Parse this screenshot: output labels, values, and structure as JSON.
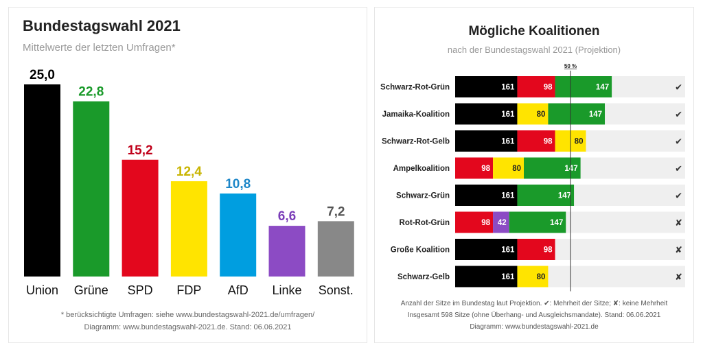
{
  "left_chart": {
    "title": "Bundestagswahl 2021",
    "subtitle": "Mittelwerte der letzten Umfragen*",
    "footnote_line1": "* berücksichtigte Umfragen: siehe www.bundestagswahl-2021.de/umfragen/",
    "footnote_line2": "Diagramm: www.bundestagswahl-2021.de. Stand: 06.06.2021",
    "chart_data": {
      "type": "bar",
      "categories": [
        "Union",
        "Grüne",
        "SPD",
        "FDP",
        "AfD",
        "Linke",
        "Sonst."
      ],
      "values": [
        25.0,
        22.8,
        15.2,
        12.4,
        10.8,
        6.6,
        7.2
      ],
      "value_labels": [
        "25,0",
        "22,8",
        "15,2",
        "12,4",
        "10,8",
        "6,6",
        "7,2"
      ],
      "colors": [
        "#000000",
        "#1a9a2a",
        "#e3071d",
        "#ffe400",
        "#009ee0",
        "#8c4bc4",
        "#888888"
      ],
      "label_colors": [
        "#000000",
        "#1a9a2a",
        "#c0001a",
        "#c8b400",
        "#1c86c8",
        "#7a3db8",
        "#555555"
      ],
      "ylim": [
        0,
        25
      ]
    }
  },
  "right_chart": {
    "title": "Mögliche Koalitionen",
    "subtitle": "nach der Bundestagswahl 2021 (Projektion)",
    "majority_label": "50 %",
    "footnote_line1": "Anzahl der Sitze im Bundestag laut Projektion. ✔: Mehrheit der Sitze; ✘: keine Mehrheit",
    "footnote_line2": "Insgesamt 598 Sitze (ohne Überhang- und Ausgleichsmandate). Stand: 06.06.2021",
    "footnote_line3": "Diagramm: www.bundestagswahl-2021.de",
    "chart_data": {
      "type": "bar",
      "orientation": "horizontal-stacked",
      "total_seats": 598,
      "majority_fraction": 0.5,
      "party_colors": {
        "Union": "#000000",
        "SPD": "#e3071d",
        "Grüne": "#1a9a2a",
        "FDP": "#ffe400",
        "Linke": "#8c4bc4"
      },
      "coalitions": [
        {
          "name": "Schwarz-Rot-Grün",
          "segments": [
            {
              "party": "Union",
              "seats": 161
            },
            {
              "party": "SPD",
              "seats": 98
            },
            {
              "party": "Grüne",
              "seats": 147
            }
          ],
          "majority": "✔"
        },
        {
          "name": "Jamaika-Koalition",
          "segments": [
            {
              "party": "Union",
              "seats": 161
            },
            {
              "party": "FDP",
              "seats": 80
            },
            {
              "party": "Grüne",
              "seats": 147
            }
          ],
          "majority": "✔"
        },
        {
          "name": "Schwarz-Rot-Gelb",
          "segments": [
            {
              "party": "Union",
              "seats": 161
            },
            {
              "party": "SPD",
              "seats": 98
            },
            {
              "party": "FDP",
              "seats": 80
            }
          ],
          "majority": "✔"
        },
        {
          "name": "Ampelkoalition",
          "segments": [
            {
              "party": "SPD",
              "seats": 98
            },
            {
              "party": "FDP",
              "seats": 80
            },
            {
              "party": "Grüne",
              "seats": 147
            }
          ],
          "majority": "✔"
        },
        {
          "name": "Schwarz-Grün",
          "segments": [
            {
              "party": "Union",
              "seats": 161
            },
            {
              "party": "Grüne",
              "seats": 147
            }
          ],
          "majority": "✔"
        },
        {
          "name": "Rot-Rot-Grün",
          "segments": [
            {
              "party": "SPD",
              "seats": 98
            },
            {
              "party": "Linke",
              "seats": 42
            },
            {
              "party": "Grüne",
              "seats": 147
            }
          ],
          "majority": "✘"
        },
        {
          "name": "Große Koalition",
          "segments": [
            {
              "party": "Union",
              "seats": 161
            },
            {
              "party": "SPD",
              "seats": 98
            }
          ],
          "majority": "✘"
        },
        {
          "name": "Schwarz-Gelb",
          "segments": [
            {
              "party": "Union",
              "seats": 161
            },
            {
              "party": "FDP",
              "seats": 80
            }
          ],
          "majority": "✘"
        }
      ]
    }
  }
}
